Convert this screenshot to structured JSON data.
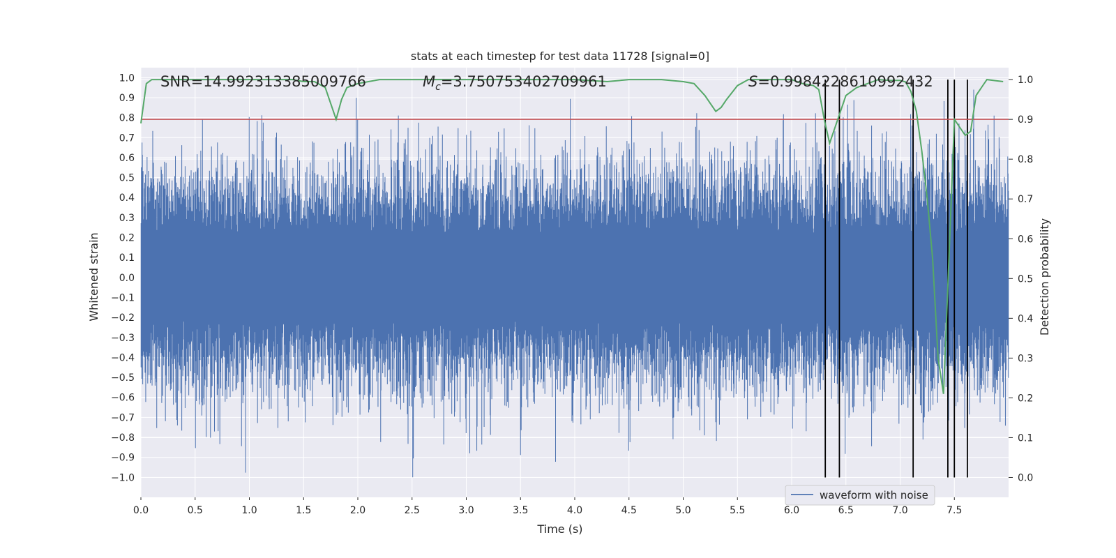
{
  "chart_data": {
    "type": "line",
    "title": "stats at each timestep for test data 11728 [signal=0]",
    "xlabel": "Time (s)",
    "ylabel": "Whitened strain",
    "y2label": "Detection probability",
    "xlim": [
      0,
      8
    ],
    "ylim": [
      -1.1,
      1.05
    ],
    "y2lim": [
      -0.05,
      1.03
    ],
    "xticks": [
      0.0,
      0.5,
      1.0,
      1.5,
      2.0,
      2.5,
      3.0,
      3.5,
      4.0,
      4.5,
      5.0,
      5.5,
      6.0,
      6.5,
      7.0,
      7.5
    ],
    "xtick_labels": [
      "0.0",
      "0.5",
      "1.0",
      "1.5",
      "2.0",
      "2.5",
      "3.0",
      "3.5",
      "4.0",
      "4.5",
      "5.0",
      "5.5",
      "6.0",
      "6.5",
      "7.0",
      "7.5"
    ],
    "yticks": [
      -1.0,
      -0.9,
      -0.8,
      -0.7,
      -0.6,
      -0.5,
      -0.4,
      -0.3,
      -0.2,
      -0.1,
      0.0,
      0.1,
      0.2,
      0.3,
      0.4,
      0.5,
      0.6,
      0.7,
      0.8,
      0.9,
      1.0
    ],
    "ytick_labels": [
      "−1.0",
      "−0.9",
      "−0.8",
      "−0.7",
      "−0.6",
      "−0.5",
      "−0.4",
      "−0.3",
      "−0.2",
      "−0.1",
      "0.0",
      "0.1",
      "0.2",
      "0.3",
      "0.4",
      "0.5",
      "0.6",
      "0.7",
      "0.8",
      "0.9",
      "1.0"
    ],
    "y2ticks": [
      0.0,
      0.1,
      0.2,
      0.3,
      0.4,
      0.5,
      0.6,
      0.7,
      0.8,
      0.9,
      1.0
    ],
    "y2tick_labels": [
      "0.0",
      "0.1",
      "0.2",
      "0.3",
      "0.4",
      "0.5",
      "0.6",
      "0.7",
      "0.8",
      "0.9",
      "1.0"
    ],
    "annotations": {
      "snr": "SNR=14.992313385009766",
      "mc_symbol": "M",
      "mc_sub": "c",
      "mc_value": "=3.750753402709961",
      "s_symbol": "S",
      "s_value": "=0.9984228610992432"
    },
    "legend": {
      "label": "waveform with noise",
      "placement": "lower-right"
    },
    "threshold": 0.9,
    "detection_times": [
      6.31,
      6.44,
      7.12,
      7.44,
      7.5,
      7.62
    ],
    "waveform": {
      "name": "waveform with noise",
      "duration": 8,
      "noise_amplitude": 0.2,
      "max_abs": 1.0,
      "seed": 11728
    },
    "series": [
      {
        "name": "Detection probability",
        "x": [
          0.0,
          0.05,
          0.1,
          0.2,
          0.5,
          1.0,
          1.4,
          1.5,
          1.6,
          1.7,
          1.75,
          1.8,
          1.85,
          1.9,
          1.95,
          2.0,
          2.2,
          2.5,
          3.0,
          3.5,
          4.0,
          4.3,
          4.5,
          4.8,
          5.0,
          5.1,
          5.2,
          5.25,
          5.3,
          5.35,
          5.4,
          5.5,
          5.6,
          5.8,
          6.0,
          6.1,
          6.2,
          6.25,
          6.3,
          6.35,
          6.4,
          6.45,
          6.5,
          6.6,
          6.7,
          6.8,
          6.9,
          7.0,
          7.05,
          7.1,
          7.15,
          7.2,
          7.25,
          7.3,
          7.35,
          7.4,
          7.45,
          7.5,
          7.55,
          7.6,
          7.65,
          7.7,
          7.75,
          7.8,
          7.95
        ],
        "values": [
          0.89,
          0.99,
          1.0,
          1.0,
          1.0,
          1.0,
          1.0,
          0.995,
          0.995,
          0.98,
          0.94,
          0.9,
          0.95,
          0.98,
          0.985,
          0.99,
          1.0,
          1.0,
          1.0,
          1.0,
          1.0,
          0.995,
          1.0,
          1.0,
          0.995,
          0.99,
          0.96,
          0.94,
          0.92,
          0.93,
          0.95,
          0.985,
          1.0,
          1.0,
          1.0,
          0.99,
          0.985,
          0.975,
          0.9,
          0.84,
          0.88,
          0.92,
          0.96,
          0.98,
          0.99,
          1.0,
          0.998,
          0.998,
          0.994,
          0.97,
          0.92,
          0.82,
          0.7,
          0.55,
          0.3,
          0.21,
          0.55,
          0.9,
          0.88,
          0.86,
          0.87,
          0.96,
          0.98,
          1.0,
          0.995
        ],
        "color": "#55a868"
      }
    ],
    "colors": {
      "waveform": "#4c72b0",
      "probability": "#55a868",
      "threshold": "#c44e52",
      "detection": "#000000",
      "axes_bg": "#eaeaf2",
      "grid": "#ffffff"
    }
  }
}
